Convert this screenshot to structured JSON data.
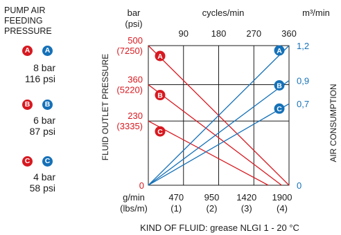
{
  "legend": {
    "title_lines": [
      "PUMP AIR",
      "FEEDING",
      "PRESSURE"
    ],
    "entries": [
      {
        "badge": "A",
        "bar": "8 bar",
        "psi": "116 psi"
      },
      {
        "badge": "B",
        "bar": "6 bar",
        "psi": "87 psi"
      },
      {
        "badge": "C",
        "bar": "4 bar",
        "psi": "58 psi"
      }
    ]
  },
  "colors": {
    "pressure": "#d71920",
    "air": "#1571b8",
    "grid": "#1a1a1a"
  },
  "chart_data": {
    "type": "line",
    "left_axis": {
      "unit_top": "bar",
      "unit_top_sub": "(psi)",
      "label": "FLUID OUTLET PRESSURE",
      "ticks": [
        {
          "value": 0,
          "label": "0",
          "sub": ""
        },
        {
          "value": 230,
          "label": "230",
          "sub": "(3335)"
        },
        {
          "value": 360,
          "label": "360",
          "sub": "(5220)"
        },
        {
          "value": 500,
          "label": "500",
          "sub": "(7250)"
        }
      ],
      "range": [
        0,
        500
      ]
    },
    "right_axis": {
      "unit_top": "m³/min",
      "label": "AIR CONSUMPTION",
      "ticks": [
        {
          "value": 0,
          "label": "0"
        },
        {
          "value": 0.7,
          "label": "0,7"
        },
        {
          "value": 0.9,
          "label": "0,9"
        },
        {
          "value": 1.2,
          "label": "1,2"
        }
      ],
      "range": [
        0,
        1.2
      ]
    },
    "top_axis": {
      "unit": "cycles/min",
      "ticks": [
        {
          "value": 90,
          "label": "90"
        },
        {
          "value": 180,
          "label": "180"
        },
        {
          "value": 270,
          "label": "270"
        },
        {
          "value": 360,
          "label": "360"
        }
      ],
      "range": [
        0,
        360
      ]
    },
    "bottom_axis": {
      "unit": "g/min",
      "unit_sub": "(lbs/m)",
      "ticks": [
        {
          "value": 470,
          "label": "470",
          "sub": "(1)"
        },
        {
          "value": 950,
          "label": "950",
          "sub": "(2)"
        },
        {
          "value": 1420,
          "label": "1420",
          "sub": "(3)"
        },
        {
          "value": 1900,
          "label": "1900",
          "sub": "(4)"
        }
      ],
      "range": [
        0,
        1900
      ]
    },
    "pressure_series": [
      {
        "name": "A",
        "points": [
          [
            0,
            500
          ],
          [
            1900,
            0
          ]
        ]
      },
      {
        "name": "B",
        "points": [
          [
            0,
            360
          ],
          [
            1800,
            0
          ]
        ]
      },
      {
        "name": "C",
        "points": [
          [
            0,
            230
          ],
          [
            1620,
            0
          ]
        ]
      }
    ],
    "air_series": [
      {
        "name": "A",
        "points": [
          [
            0,
            0
          ],
          [
            1900,
            1.2
          ]
        ]
      },
      {
        "name": "B",
        "points": [
          [
            0,
            0
          ],
          [
            1900,
            0.9
          ]
        ]
      },
      {
        "name": "C",
        "points": [
          [
            0,
            0
          ],
          [
            1900,
            0.7
          ]
        ]
      }
    ],
    "footnote": "KIND OF FLUID: grease NLGI 1 - 20 °C",
    "grid": true
  }
}
